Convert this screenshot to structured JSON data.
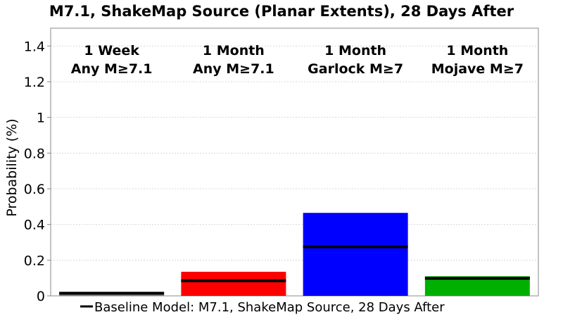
{
  "chart_data": {
    "type": "bar",
    "title": "M7.1, ShakeMap Source (Planar Extents), 28 Days After",
    "ylabel": "Probability (%)",
    "xlabel": "",
    "ylim": [
      0,
      1.5
    ],
    "yticks": [
      0,
      0.2,
      0.4,
      0.6,
      0.8,
      1,
      1.2,
      1.4
    ],
    "ytick_labels": [
      "0",
      "0.2",
      "0.4",
      "0.6",
      "0.8",
      "1",
      "1.2",
      "1.4"
    ],
    "grid": true,
    "categories": [
      {
        "line1": "1 Week",
        "line2": "Any M≥7.1"
      },
      {
        "line1": "1 Month",
        "line2": "Any M≥7.1"
      },
      {
        "line1": "1 Month",
        "line2": "Garlock M≥7"
      },
      {
        "line1": "1 Month",
        "line2": "Mojave M≥7"
      }
    ],
    "values": [
      0.012,
      0.135,
      0.465,
      0.11
    ],
    "colors": [
      "#808080",
      "#ff0000",
      "#0000ff",
      "#00b000"
    ],
    "baseline": {
      "name": "Baseline Model: M7.1, ShakeMap Source, 28 Days After",
      "values": [
        0.015,
        0.085,
        0.275,
        0.098
      ],
      "color": "#000000"
    },
    "legend_position": "bottom"
  }
}
